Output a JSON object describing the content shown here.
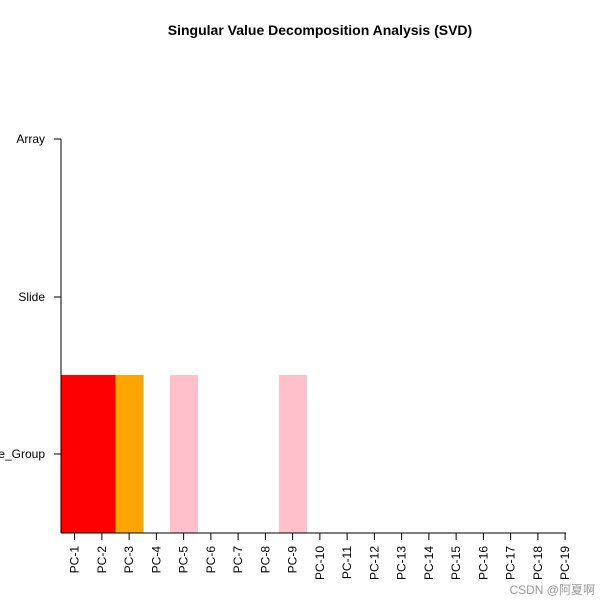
{
  "chart_data": {
    "type": "heatmap",
    "title": "Singular Value Decomposition Analysis (SVD)",
    "xlabel": "",
    "ylabel": "",
    "x_categories": [
      "PC-1",
      "PC-2",
      "PC-3",
      "PC-4",
      "PC-5",
      "PC-6",
      "PC-7",
      "PC-8",
      "PC-9",
      "PC-10",
      "PC-11",
      "PC-12",
      "PC-13",
      "PC-14",
      "PC-15",
      "PC-16",
      "PC-17",
      "PC-18",
      "PC-19"
    ],
    "y_categories": [
      "Array",
      "Slide",
      "e_Group"
    ],
    "cells": [
      {
        "x": "PC-1",
        "y": "e_Group",
        "color": "#ff0000"
      },
      {
        "x": "PC-2",
        "y": "e_Group",
        "color": "#ff0000"
      },
      {
        "x": "PC-3",
        "y": "e_Group",
        "color": "#ffa500"
      },
      {
        "x": "PC-5",
        "y": "e_Group",
        "color": "#ffc0cb"
      },
      {
        "x": "PC-9",
        "y": "e_Group",
        "color": "#ffc0cb"
      }
    ],
    "grid": false,
    "legend": "none"
  },
  "watermark": "CSDN @阿夏啊"
}
